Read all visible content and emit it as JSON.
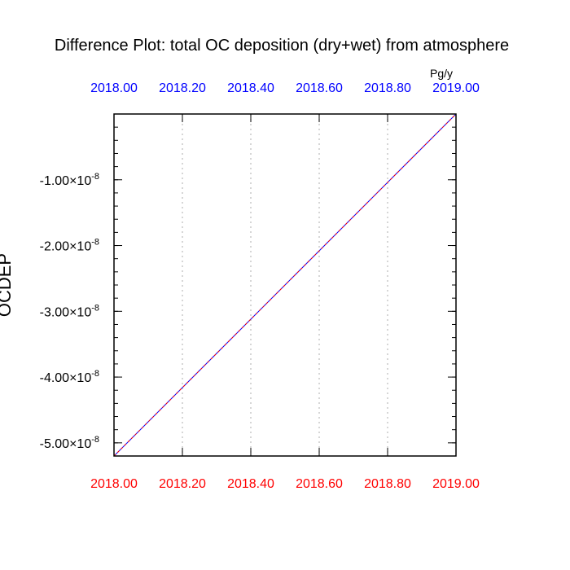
{
  "chart_data": {
    "type": "line",
    "title": "Difference Plot: total OC deposition (dry+wet) from atmosphere",
    "units_label": "Pg/y",
    "ylabel": "OCDEP",
    "x": [
      2018.0,
      2019.0
    ],
    "series": [
      {
        "values": [
          -5.2e-08,
          0.0
        ],
        "color": "#0000ff",
        "style": "solid"
      },
      {
        "values": [
          -5.2e-08,
          0.0
        ],
        "color": "#ff0000",
        "style": "dashed"
      }
    ],
    "xlim": [
      2018.0,
      2019.0
    ],
    "ylim": [
      -5.2e-08,
      0.0
    ],
    "x_ticks": [
      2018.0,
      2018.2,
      2018.4,
      2018.6,
      2018.8,
      2019.0
    ],
    "x_tick_labels_bottom": [
      "2018.00",
      "2018.20",
      "2018.40",
      "2018.60",
      "2018.80",
      "2019.00"
    ],
    "x_tick_labels_top": [
      "2018.00",
      "2018.20",
      "2018.40",
      "2018.60",
      "2018.80",
      "2019.00"
    ],
    "x_minor_ticks": [],
    "y_ticks": [
      {
        "value": -1e-08,
        "mantissa": "-1.00",
        "times": "×10",
        "exp": "-8"
      },
      {
        "value": -2e-08,
        "mantissa": "-2.00",
        "times": "×10",
        "exp": "-8"
      },
      {
        "value": -3e-08,
        "mantissa": "-3.00",
        "times": "×10",
        "exp": "-8"
      },
      {
        "value": -4e-08,
        "mantissa": "-4.00",
        "times": "×10",
        "exp": "-8"
      },
      {
        "value": -5e-08,
        "mantissa": "-5.00",
        "times": "×10",
        "exp": "-8"
      }
    ],
    "y_minor_step": 2e-09,
    "grid": "vertical-dotted",
    "colors": {
      "bottom_axis_labels": "#ff0000",
      "top_axis_labels": "#0000ff",
      "grid": "#bbbbbb",
      "axes": "#000000"
    }
  }
}
